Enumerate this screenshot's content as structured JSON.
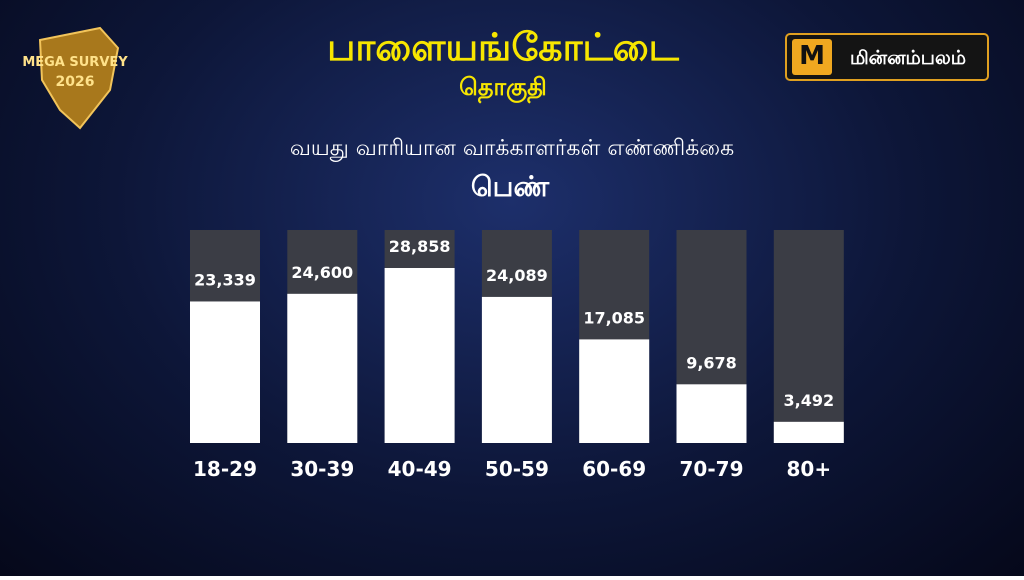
{
  "badge": {
    "line1": "MEGA SURVEY",
    "line2": "2026"
  },
  "brand": {
    "icon": "M",
    "name": "மின்னம்பலம்"
  },
  "chart_data": {
    "type": "bar",
    "title": "பாளையங்கோட்டை",
    "subtitle": "தொகுதி",
    "chart_title": "வயது வாரியான வாக்காளர்கள் எண்ணிக்கை",
    "group": "பெண்",
    "categories": [
      "18-29",
      "30-39",
      "40-49",
      "50-59",
      "60-69",
      "70-79",
      "80+"
    ],
    "values": [
      23339,
      24600,
      28858,
      24089,
      17085,
      9678,
      3492
    ],
    "value_labels": [
      "23,339",
      "24,600",
      "28,858",
      "24,089",
      "17,085",
      "9,678",
      "3,492"
    ],
    "color": "#ffffff",
    "track_color": "#3b3d45"
  }
}
